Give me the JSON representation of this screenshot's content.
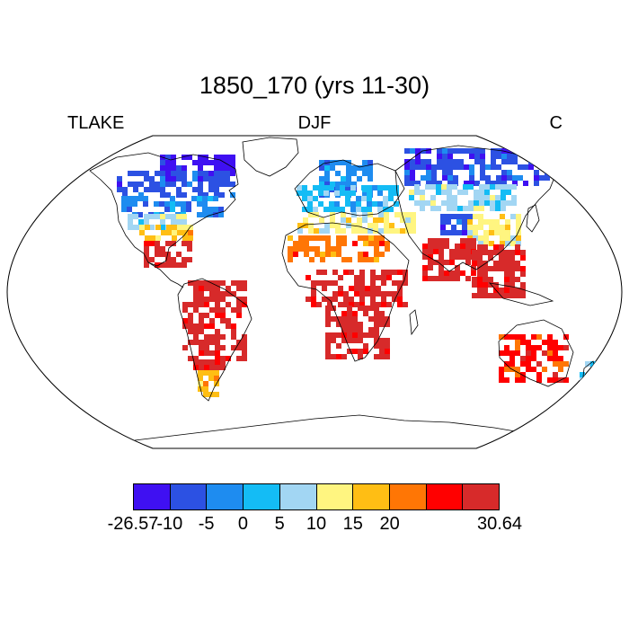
{
  "title": "1850_170 (yrs 11-30)",
  "subtitle_left": "TLAKE",
  "subtitle_center": "DJF",
  "subtitle_right": "C",
  "colorbar": {
    "colors": [
      "#3f10f2",
      "#2c51e3",
      "#1e8cf0",
      "#14bcf5",
      "#a2d6f3",
      "#fff580",
      "#ffbe14",
      "#ff7605",
      "#ff0000",
      "#d72a2a"
    ],
    "labels": [
      {
        "text": "-26.57",
        "index": 0
      },
      {
        "text": "-10",
        "index": 1
      },
      {
        "text": "-5",
        "index": 2
      },
      {
        "text": "0",
        "index": 3
      },
      {
        "text": "5",
        "index": 4
      },
      {
        "text": "10",
        "index": 5
      },
      {
        "text": "15",
        "index": 6
      },
      {
        "text": "20",
        "index": 7
      },
      {
        "text": "30.64",
        "index": 10
      }
    ]
  },
  "chart_data": {
    "type": "heatmap",
    "projection": "Robinson",
    "variable": "TLAKE",
    "season": "DJF",
    "units": "C",
    "value_range": [
      -26.57,
      30.64
    ],
    "contour_levels": [
      -10,
      -5,
      0,
      5,
      10,
      15,
      20
    ],
    "regions": [
      {
        "region": "northern-canada",
        "bin": 0
      },
      {
        "region": "canada",
        "bin": 1
      },
      {
        "region": "southern-canada",
        "bin": 2
      },
      {
        "region": "northern-usa",
        "bin": 4
      },
      {
        "region": "southern-usa",
        "bin": 6
      },
      {
        "region": "mexico",
        "bin": 9
      },
      {
        "region": "south-america",
        "bin": 9
      },
      {
        "region": "patagonia",
        "bin": 6
      },
      {
        "region": "scandinavia",
        "bin": 2
      },
      {
        "region": "europe",
        "bin": 3
      },
      {
        "region": "mediterranean",
        "bin": 5
      },
      {
        "region": "sahel",
        "bin": 7
      },
      {
        "region": "central-africa",
        "bin": 9
      },
      {
        "region": "southern-africa",
        "bin": 9
      },
      {
        "region": "siberia",
        "bin": 1
      },
      {
        "region": "central-asia",
        "bin": 4
      },
      {
        "region": "tibet",
        "bin": 1
      },
      {
        "region": "china",
        "bin": 5
      },
      {
        "region": "india",
        "bin": 9
      },
      {
        "region": "southeast-asia",
        "bin": 9
      },
      {
        "region": "australia",
        "bin": 8
      },
      {
        "region": "new-zealand",
        "bin": 4
      }
    ]
  }
}
